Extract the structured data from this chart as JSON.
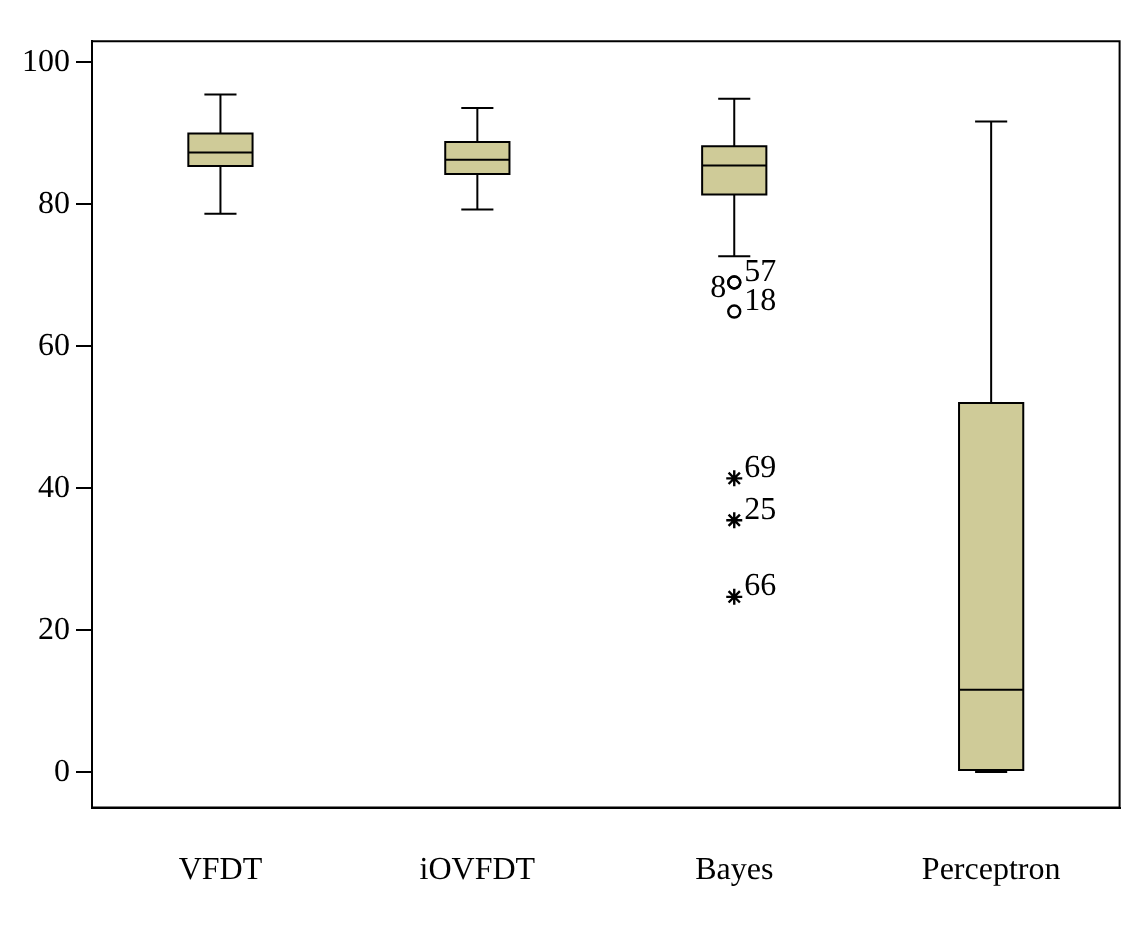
{
  "chart_data": {
    "type": "box",
    "categories": [
      "VFDT",
      "iOVFDT",
      "Bayes",
      "Perceptron"
    ],
    "color": "#cfcb98",
    "boxes": [
      {
        "low": 78.7,
        "q1": 85.4,
        "median": 87.3,
        "q3": 90,
        "high": 95.5
      },
      {
        "low": 79.3,
        "q1": 84.3,
        "median": 86.3,
        "q3": 88.8,
        "high": 93.6
      },
      {
        "low": 72.7,
        "q1": 81.4,
        "median": 85.5,
        "q3": 88.2,
        "high": 94.9
      },
      {
        "low": 0,
        "q1": 0.3,
        "median": 11.6,
        "q3": 52,
        "high": 91.7
      }
    ],
    "series": [
      {
        "type": "scatter",
        "x": [
          "Bayes",
          "Bayes",
          "Bayes"
        ],
        "values": [
          69,
          69,
          64.9
        ],
        "color": "#000000",
        "marker": "circle"
      },
      {
        "type": "scatter",
        "x": [
          "Bayes",
          "Bayes",
          "Bayes"
        ],
        "values": [
          41.4,
          35.5,
          24.7
        ],
        "color": "#000000",
        "marker": "cross"
      }
    ],
    "ylim": [
      -5,
      103
    ],
    "yticks": [
      0,
      20,
      40,
      60,
      80,
      100
    ],
    "grid": false,
    "legend": false,
    "annotations": [
      {
        "text": "8",
        "x": "Bayes",
        "y": 69
      },
      {
        "text": "57",
        "x": "Bayes",
        "y": 69
      },
      {
        "text": "18",
        "x": "Bayes",
        "y": 64.9
      },
      {
        "text": "69",
        "x": "Bayes",
        "y": 41.4
      },
      {
        "text": "25",
        "x": "Bayes",
        "y": 35.5
      },
      {
        "text": "66",
        "x": "Bayes",
        "y": 24.7
      }
    ]
  }
}
